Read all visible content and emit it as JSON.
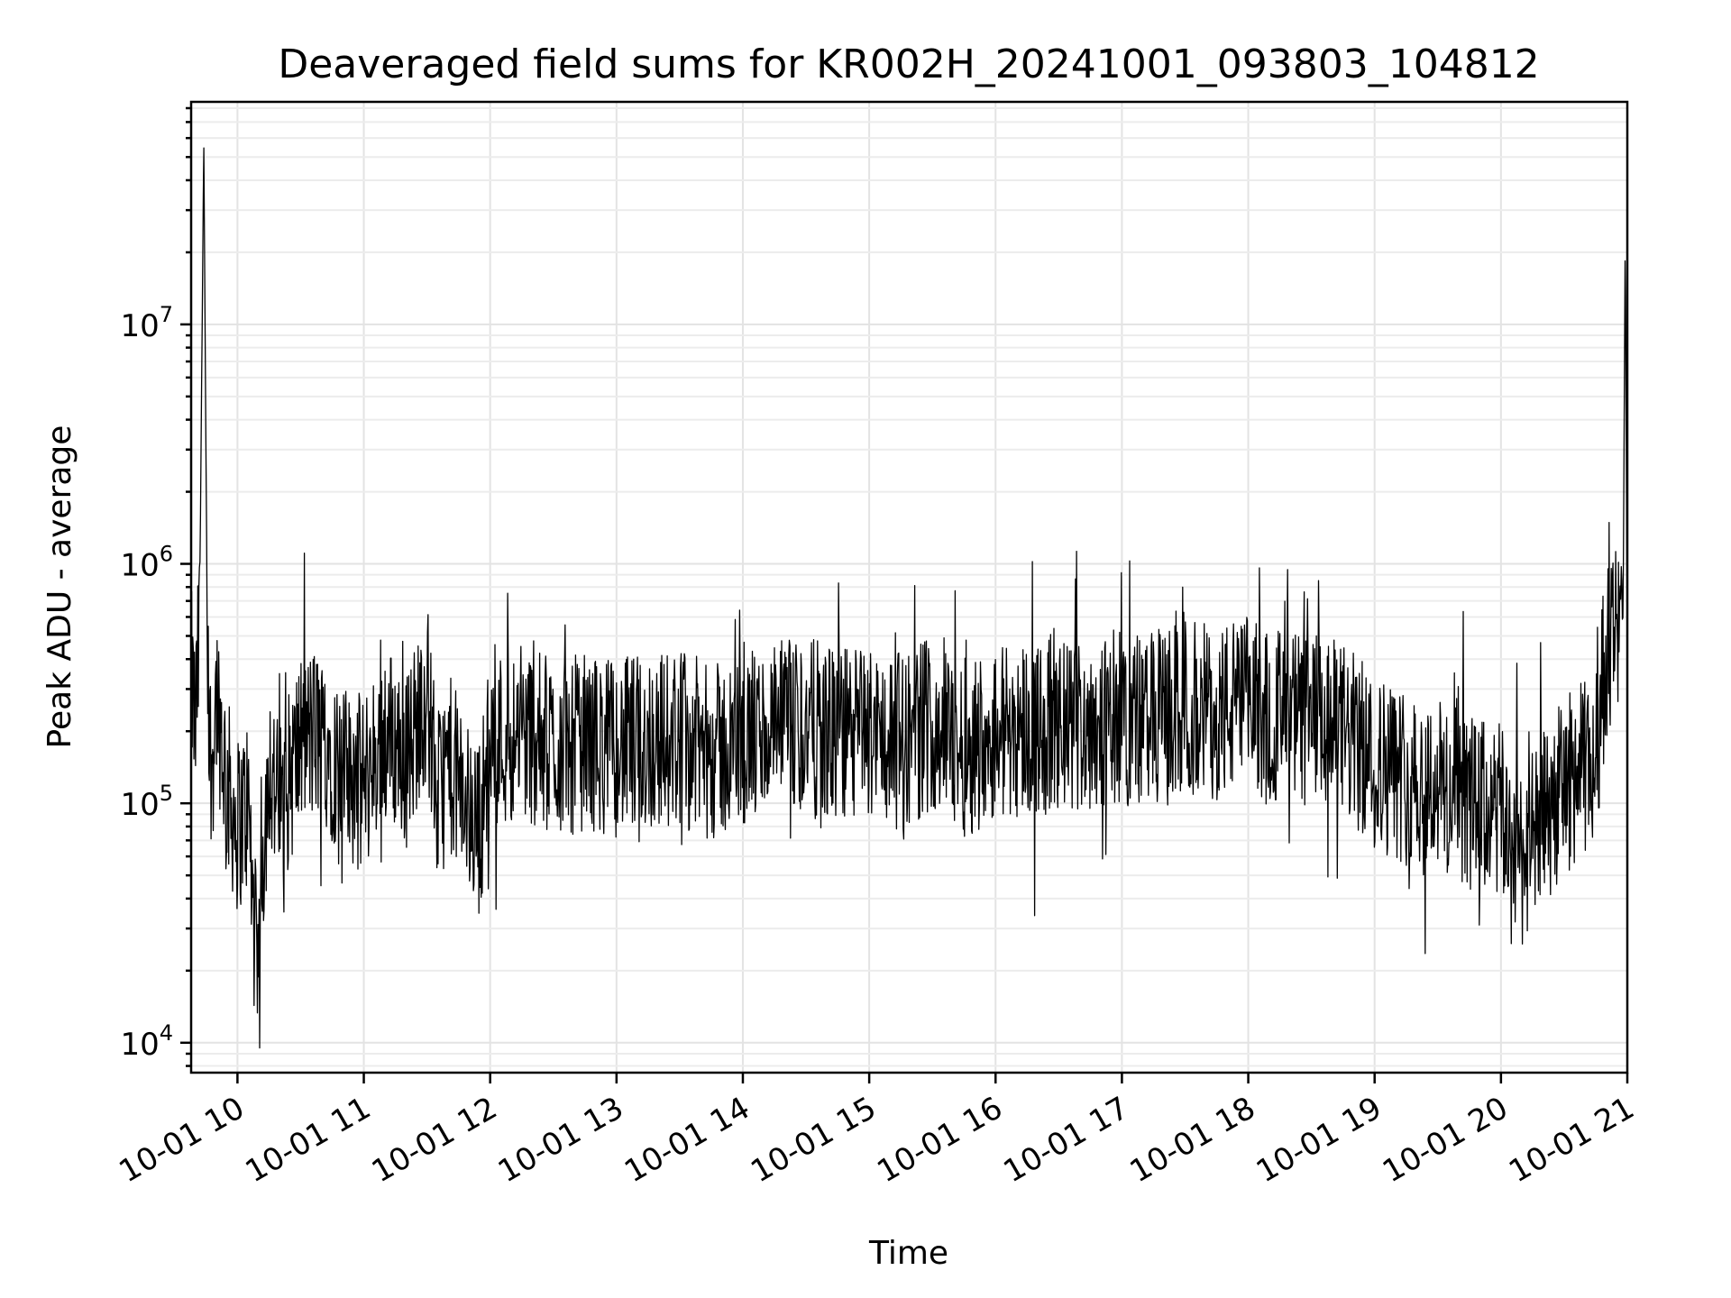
{
  "chart_data": {
    "type": "line",
    "title": "Deaveraged field sums for KR002H_20241001_093803_104812",
    "xlabel": "Time",
    "ylabel": "Peak ADU - average",
    "xlim": [
      "2024-10-01 09:38",
      "2024-10-01 21:00"
    ],
    "yscale": "log",
    "ylim": [
      7500,
      85000000
    ],
    "grid": "major and minor",
    "x_ticks": [
      {
        "label": "10-01 10",
        "value": "2024-10-01 10:00"
      },
      {
        "label": "10-01 11",
        "value": "2024-10-01 11:00"
      },
      {
        "label": "10-01 12",
        "value": "2024-10-01 12:00"
      },
      {
        "label": "10-01 13",
        "value": "2024-10-01 13:00"
      },
      {
        "label": "10-01 14",
        "value": "2024-10-01 14:00"
      },
      {
        "label": "10-01 15",
        "value": "2024-10-01 15:00"
      },
      {
        "label": "10-01 16",
        "value": "2024-10-01 16:00"
      },
      {
        "label": "10-01 17",
        "value": "2024-10-01 17:00"
      },
      {
        "label": "10-01 18",
        "value": "2024-10-01 18:00"
      },
      {
        "label": "10-01 19",
        "value": "2024-10-01 19:00"
      },
      {
        "label": "10-01 20",
        "value": "2024-10-01 20:00"
      },
      {
        "label": "10-01 21",
        "value": "2024-10-01 21:00"
      }
    ],
    "y_ticks": [
      {
        "base": "10",
        "exp": "4",
        "value": 10000
      },
      {
        "base": "10",
        "exp": "5",
        "value": 100000
      },
      {
        "base": "10",
        "exp": "6",
        "value": 1000000
      },
      {
        "base": "10",
        "exp": "7",
        "value": 10000000
      }
    ],
    "series": [
      {
        "color": "#000000",
        "x": [
          "2024-10-01 09:38",
          "2024-10-01 09:40",
          "2024-10-01 09:42",
          "2024-10-01 09:44",
          "2024-10-01 09:46",
          "2024-10-01 09:48",
          "2024-10-01 09:50",
          "2024-10-01 09:55",
          "2024-10-01 10:00",
          "2024-10-01 10:05",
          "2024-10-01 10:08",
          "2024-10-01 10:10",
          "2024-10-01 10:12",
          "2024-10-01 10:15",
          "2024-10-01 10:20",
          "2024-10-01 10:25",
          "2024-10-01 10:30",
          "2024-10-01 10:40",
          "2024-10-01 10:50",
          "2024-10-01 11:00",
          "2024-10-01 11:10",
          "2024-10-01 11:15",
          "2024-10-01 11:20",
          "2024-10-01 11:30",
          "2024-10-01 11:35",
          "2024-10-01 11:40",
          "2024-10-01 11:45",
          "2024-10-01 11:50",
          "2024-10-01 11:55",
          "2024-10-01 12:00",
          "2024-10-01 12:15",
          "2024-10-01 12:30",
          "2024-10-01 12:45",
          "2024-10-01 13:00",
          "2024-10-01 13:15",
          "2024-10-01 13:30",
          "2024-10-01 13:45",
          "2024-10-01 14:00",
          "2024-10-01 14:15",
          "2024-10-01 14:30",
          "2024-10-01 14:45",
          "2024-10-01 15:00",
          "2024-10-01 15:15",
          "2024-10-01 15:30",
          "2024-10-01 15:45",
          "2024-10-01 16:00",
          "2024-10-01 16:15",
          "2024-10-01 16:30",
          "2024-10-01 16:45",
          "2024-10-01 17:00",
          "2024-10-01 17:15",
          "2024-10-01 17:30",
          "2024-10-01 17:45",
          "2024-10-01 18:00",
          "2024-10-01 18:15",
          "2024-10-01 18:30",
          "2024-10-01 18:45",
          "2024-10-01 19:00",
          "2024-10-01 19:15",
          "2024-10-01 19:30",
          "2024-10-01 19:45",
          "2024-10-01 20:00",
          "2024-10-01 20:10",
          "2024-10-01 20:15",
          "2024-10-01 20:30",
          "2024-10-01 20:45",
          "2024-10-01 20:50",
          "2024-10-01 20:55",
          "2024-10-01 20:58",
          "2024-10-01 20:59",
          "2024-10-01 21:00"
        ],
        "y": [
          350000,
          200000,
          550000,
          60000000,
          200000,
          150000,
          300000,
          120000,
          80000,
          100000,
          30000,
          14000,
          60000,
          150000,
          90000,
          130000,
          180000,
          200000,
          130000,
          120000,
          200000,
          180000,
          150000,
          300000,
          100000,
          150000,
          120000,
          90000,
          80000,
          180000,
          200000,
          170000,
          180000,
          170000,
          180000,
          190000,
          160000,
          180000,
          200000,
          210000,
          190000,
          200000,
          180000,
          220000,
          170000,
          200000,
          210000,
          200000,
          220000,
          230000,
          220000,
          250000,
          240000,
          260000,
          230000,
          220000,
          200000,
          150000,
          130000,
          120000,
          100000,
          90000,
          60000,
          70000,
          120000,
          150000,
          450000,
          500000,
          600000,
          22000000,
          400000
        ]
      }
    ]
  }
}
